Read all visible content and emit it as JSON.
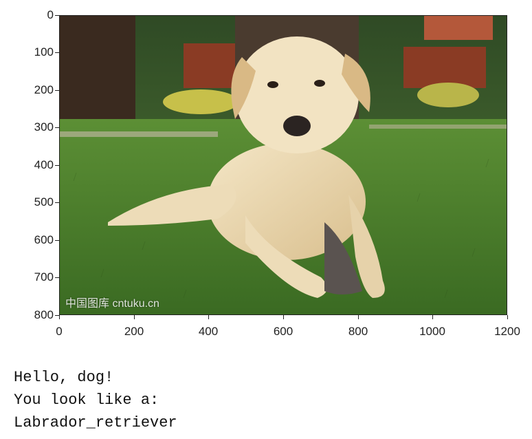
{
  "figure": {
    "image_watermark": "中国图库 cntuku.cn",
    "x_ticks": [
      "0",
      "200",
      "400",
      "600",
      "800",
      "1000",
      "1200"
    ],
    "y_ticks": [
      "0",
      "100",
      "200",
      "300",
      "400",
      "500",
      "600",
      "700",
      "800"
    ],
    "x_range": [
      0,
      1200
    ],
    "y_range": [
      0,
      800
    ],
    "image_description_colors": {
      "grass": "#4c7a2c",
      "fur": "#e9d6b1",
      "tree": "#3a2a1f",
      "fence": "#8a3b24"
    }
  },
  "output": {
    "line1": "Hello, dog!",
    "line2": "You look like a:",
    "line3": "Labrador_retriever"
  }
}
